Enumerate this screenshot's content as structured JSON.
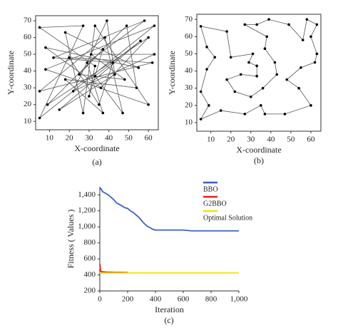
{
  "chart_data": [
    {
      "type": "route",
      "caption": "(a)",
      "xlabel": "X-coordinate",
      "ylabel": "Y-coordinate",
      "closed": true,
      "color": "#555555",
      "x": [
        5,
        27,
        5,
        63,
        8,
        60,
        33,
        27,
        18,
        55,
        8,
        36,
        60,
        9,
        49,
        54,
        18,
        37,
        29,
        58,
        12,
        42,
        35,
        20,
        62,
        5,
        38,
        47,
        33,
        56,
        15,
        43,
        39,
        22,
        63,
        31,
        48,
        25,
        37,
        30,
        33
      ],
      "values": [
        66,
        67,
        12,
        67,
        41,
        20,
        67,
        15,
        63,
        42,
        54,
        30,
        60,
        20,
        67,
        30,
        35,
        15,
        45,
        70,
        48,
        45,
        20,
        48,
        45,
        28,
        60,
        15,
        37,
        58,
        17,
        38,
        70,
        28,
        50,
        50,
        35,
        38,
        53,
        25,
        43
      ],
      "xlim": [
        3,
        65
      ],
      "xticks": [
        10,
        20,
        30,
        40,
        50,
        60
      ],
      "ylim": [
        5,
        73
      ],
      "yticks": [
        10,
        20,
        30,
        40,
        50,
        60,
        70
      ]
    },
    {
      "type": "route",
      "caption": "(b)",
      "xlabel": "X-coordinate",
      "ylabel": "Y-coordinate",
      "closed": true,
      "color": "#555555",
      "x": [
        5,
        8,
        12,
        8,
        5,
        9,
        5,
        15,
        27,
        35,
        37,
        47,
        60,
        54,
        48,
        55,
        62,
        63,
        60,
        63,
        58,
        56,
        49,
        39,
        33,
        27,
        38,
        37,
        42,
        43,
        36,
        30,
        22,
        18,
        25,
        33,
        33,
        29,
        31,
        20,
        18
      ],
      "values": [
        66,
        54,
        48,
        41,
        28,
        20,
        12,
        17,
        15,
        20,
        15,
        15,
        20,
        30,
        35,
        42,
        45,
        50,
        60,
        67,
        70,
        58,
        67,
        70,
        67,
        67,
        60,
        53,
        45,
        38,
        30,
        25,
        28,
        35,
        38,
        37,
        43,
        45,
        50,
        48,
        63
      ],
      "xlim": [
        3,
        65
      ],
      "xticks": [
        10,
        20,
        30,
        40,
        50,
        60
      ],
      "ylim": [
        5,
        73
      ],
      "yticks": [
        10,
        20,
        30,
        40,
        50,
        60,
        70
      ]
    },
    {
      "type": "line",
      "caption": "(c)",
      "xlabel": "Iteration",
      "ylabel": "Fitness ( Values )",
      "series": [
        {
          "name": "BBO",
          "color": "#3b5fc8",
          "x": [
            0,
            10,
            20,
            40,
            60,
            80,
            100,
            120,
            140,
            160,
            180,
            200,
            220,
            240,
            260,
            280,
            300,
            320,
            340,
            360,
            380,
            400,
            500,
            600,
            660,
            700,
            800,
            900,
            1000
          ],
          "values": [
            1490,
            1470,
            1440,
            1420,
            1400,
            1370,
            1340,
            1300,
            1280,
            1260,
            1240,
            1230,
            1200,
            1180,
            1150,
            1120,
            1080,
            1040,
            1010,
            990,
            970,
            960,
            960,
            960,
            950,
            950,
            950,
            950,
            950
          ]
        },
        {
          "name": "G2BBO",
          "color": "#e8201a",
          "x": [
            0,
            5,
            10,
            50,
            100,
            200
          ],
          "values": [
            540,
            460,
            440,
            435,
            432,
            430
          ]
        },
        {
          "name": "Optimal Solution",
          "color": "#f2e200",
          "x": [
            0,
            1000
          ],
          "values": [
            425,
            425
          ]
        }
      ],
      "xlim": [
        0,
        1000
      ],
      "xticks": [
        0,
        200,
        400,
        600,
        800,
        {
          "value": 1000,
          "label": "1,000"
        }
      ],
      "ylim": [
        200,
        1500
      ],
      "yticks": [
        200,
        400,
        600,
        800,
        {
          "value": 1000,
          "label": "1,000"
        },
        {
          "value": 1200,
          "label": "1,200"
        },
        {
          "value": 1400,
          "label": "1,400"
        }
      ]
    }
  ]
}
